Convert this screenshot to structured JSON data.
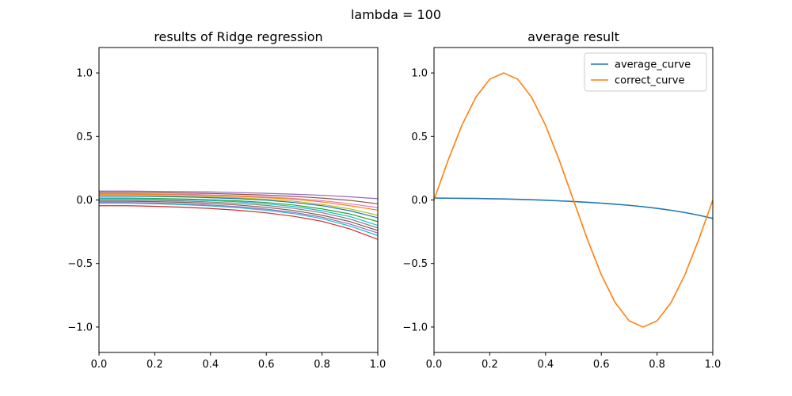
{
  "figure_title": "lambda = 100",
  "chart_data": [
    {
      "type": "line",
      "title": "results of Ridge regression",
      "xlabel": "",
      "ylabel": "",
      "xlim": [
        0.0,
        1.0
      ],
      "ylim": [
        -1.2,
        1.2
      ],
      "x_ticks": [
        "0.0",
        "0.2",
        "0.4",
        "0.6",
        "0.8",
        "1.0"
      ],
      "y_ticks": [
        "-1.0",
        "-0.5",
        "0.0",
        "0.5",
        "1.0"
      ],
      "grid": false,
      "legend": "none",
      "x": [
        0.0,
        0.1,
        0.2,
        0.3,
        0.4,
        0.5,
        0.6,
        0.7,
        0.8,
        0.9,
        1.0
      ],
      "series": [
        {
          "color": "#9467bd",
          "values": [
            0.07,
            0.07,
            0.068,
            0.066,
            0.063,
            0.058,
            0.052,
            0.045,
            0.037,
            0.025,
            0.01
          ]
        },
        {
          "color": "#8c564b",
          "values": [
            0.06,
            0.06,
            0.058,
            0.055,
            0.051,
            0.045,
            0.038,
            0.028,
            0.015,
            -0.003,
            -0.03
          ]
        },
        {
          "color": "#e377c2",
          "values": [
            0.05,
            0.05,
            0.048,
            0.045,
            0.04,
            0.033,
            0.024,
            0.012,
            -0.005,
            -0.03,
            -0.06
          ]
        },
        {
          "color": "#ff7f0e",
          "values": [
            0.045,
            0.045,
            0.043,
            0.04,
            0.035,
            0.028,
            0.018,
            0.005,
            -0.015,
            -0.045,
            -0.08
          ]
        },
        {
          "color": "#bcbd22",
          "values": [
            0.035,
            0.035,
            0.033,
            0.03,
            0.025,
            0.017,
            0.006,
            -0.01,
            -0.035,
            -0.07,
            -0.12
          ]
        },
        {
          "color": "#1f77b4",
          "values": [
            0.03,
            0.03,
            0.028,
            0.024,
            0.018,
            0.01,
            -0.002,
            -0.02,
            -0.045,
            -0.085,
            -0.14
          ]
        },
        {
          "color": "#2ca02c",
          "values": [
            0.015,
            0.015,
            0.012,
            0.008,
            0.002,
            -0.007,
            -0.02,
            -0.04,
            -0.07,
            -0.11,
            -0.17
          ]
        },
        {
          "color": "#17becf",
          "values": [
            0.01,
            0.01,
            0.007,
            0.002,
            -0.005,
            -0.015,
            -0.03,
            -0.052,
            -0.085,
            -0.13,
            -0.2
          ]
        },
        {
          "color": "#7f7f7f",
          "values": [
            0.0,
            0.0,
            -0.003,
            -0.008,
            -0.016,
            -0.027,
            -0.043,
            -0.066,
            -0.1,
            -0.15,
            -0.22
          ]
        },
        {
          "color": "#8c564b",
          "values": [
            -0.01,
            -0.01,
            -0.013,
            -0.018,
            -0.027,
            -0.04,
            -0.058,
            -0.083,
            -0.12,
            -0.17,
            -0.24
          ]
        },
        {
          "color": "#9467bd",
          "values": [
            -0.02,
            -0.02,
            -0.024,
            -0.03,
            -0.04,
            -0.053,
            -0.072,
            -0.098,
            -0.135,
            -0.19,
            -0.26
          ]
        },
        {
          "color": "#17becf",
          "values": [
            -0.025,
            -0.025,
            -0.03,
            -0.037,
            -0.047,
            -0.061,
            -0.081,
            -0.108,
            -0.147,
            -0.205,
            -0.28
          ]
        },
        {
          "color": "#d62728",
          "values": [
            -0.045,
            -0.045,
            -0.05,
            -0.057,
            -0.067,
            -0.081,
            -0.101,
            -0.129,
            -0.168,
            -0.228,
            -0.31
          ]
        }
      ]
    },
    {
      "type": "line",
      "title": "average result",
      "xlabel": "",
      "ylabel": "",
      "xlim": [
        0.0,
        1.0
      ],
      "ylim": [
        -1.2,
        1.2
      ],
      "x_ticks": [
        "0.0",
        "0.2",
        "0.4",
        "0.6",
        "0.8",
        "1.0"
      ],
      "y_ticks": [
        "-1.0",
        "-0.5",
        "0.0",
        "0.5",
        "1.0"
      ],
      "grid": false,
      "legend": "top-right",
      "x": [
        0.0,
        0.05,
        0.1,
        0.15,
        0.2,
        0.25,
        0.3,
        0.35,
        0.4,
        0.45,
        0.5,
        0.55,
        0.6,
        0.65,
        0.7,
        0.75,
        0.8,
        0.85,
        0.9,
        0.95,
        1.0
      ],
      "series": [
        {
          "name": "average_curve",
          "color": "#1f77b4",
          "values": [
            0.015,
            0.014,
            0.013,
            0.012,
            0.01,
            0.008,
            0.005,
            0.002,
            -0.002,
            -0.007,
            -0.012,
            -0.018,
            -0.025,
            -0.033,
            -0.042,
            -0.053,
            -0.066,
            -0.081,
            -0.099,
            -0.12,
            -0.145
          ]
        },
        {
          "name": "correct_curve",
          "color": "#ff7f0e",
          "values": [
            0.0,
            0.309,
            0.588,
            0.809,
            0.951,
            1.0,
            0.951,
            0.809,
            0.588,
            0.309,
            0.0,
            -0.309,
            -0.588,
            -0.809,
            -0.951,
            -1.0,
            -0.951,
            -0.809,
            -0.588,
            -0.309,
            0.0
          ]
        }
      ]
    }
  ]
}
